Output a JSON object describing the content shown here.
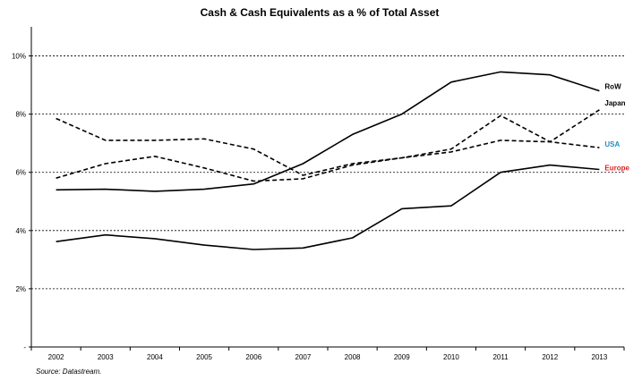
{
  "chart_data": {
    "type": "line",
    "title": "Cash & Cash Equivalents as a % of Total Asset",
    "xlabel": "",
    "ylabel": "",
    "x": [
      "2002",
      "2003",
      "2004",
      "2005",
      "2006",
      "2007",
      "2008",
      "2009",
      "2010",
      "2011",
      "2012",
      "2013"
    ],
    "y_ticks": [
      {
        "value": 0,
        "label": "-"
      },
      {
        "value": 2,
        "label": "2%"
      },
      {
        "value": 4,
        "label": "4%"
      },
      {
        "value": 6,
        "label": "6%"
      },
      {
        "value": 8,
        "label": "8%"
      },
      {
        "value": 10,
        "label": "10%"
      }
    ],
    "ylim": [
      0,
      11
    ],
    "grid": true,
    "series": [
      {
        "name": "RoW",
        "style": "solid",
        "label_color": "#000000",
        "values": [
          5.4,
          5.42,
          5.35,
          5.42,
          5.6,
          6.3,
          7.3,
          8.0,
          9.1,
          9.45,
          9.35,
          8.8
        ]
      },
      {
        "name": "Japan",
        "style": "dashed",
        "label_color": "#000000",
        "values": [
          7.85,
          7.1,
          7.1,
          7.15,
          6.8,
          5.9,
          6.3,
          6.5,
          6.8,
          7.95,
          7.05,
          8.15
        ]
      },
      {
        "name": "USA",
        "style": "dashed",
        "label_color": "#1f8fc4",
        "values": [
          5.8,
          6.3,
          6.55,
          6.15,
          5.7,
          5.78,
          6.25,
          6.5,
          6.7,
          7.1,
          7.05,
          6.85
        ]
      },
      {
        "name": "Europe",
        "style": "solid",
        "label_color": "#e02020",
        "values": [
          3.62,
          3.85,
          3.72,
          3.5,
          3.35,
          3.4,
          3.75,
          4.75,
          4.85,
          6.0,
          6.25,
          6.1
        ]
      }
    ]
  },
  "source": "Source: Datastream."
}
